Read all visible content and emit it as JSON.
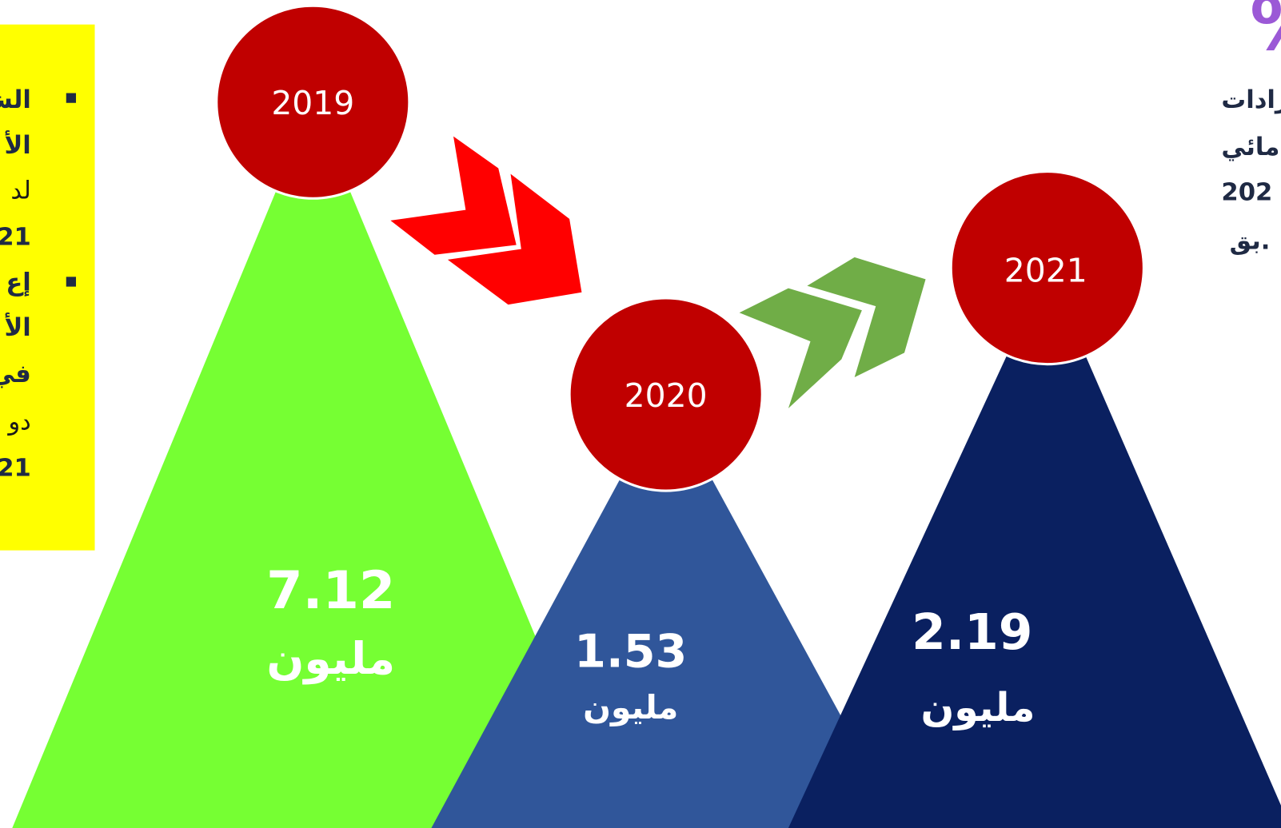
{
  "left_panel": {
    "bullets": [
      {
        "lines": [
          "الش",
          "الأ",
          "لد",
          "21"
        ]
      },
      {
        "lines": [
          "إع",
          "الأ",
          "في",
          "دو",
          "21"
        ]
      }
    ]
  },
  "right_panel": {
    "symbol": "%",
    "lines": [
      "رادات",
      "مائي",
      "202",
      "بق."
    ]
  },
  "items": [
    {
      "year": "2019",
      "value": "7.12",
      "unit": "مليون"
    },
    {
      "year": "2020",
      "value": "1.53",
      "unit": "مليون"
    },
    {
      "year": "2021",
      "value": "2.19",
      "unit": "مليون"
    }
  ]
}
